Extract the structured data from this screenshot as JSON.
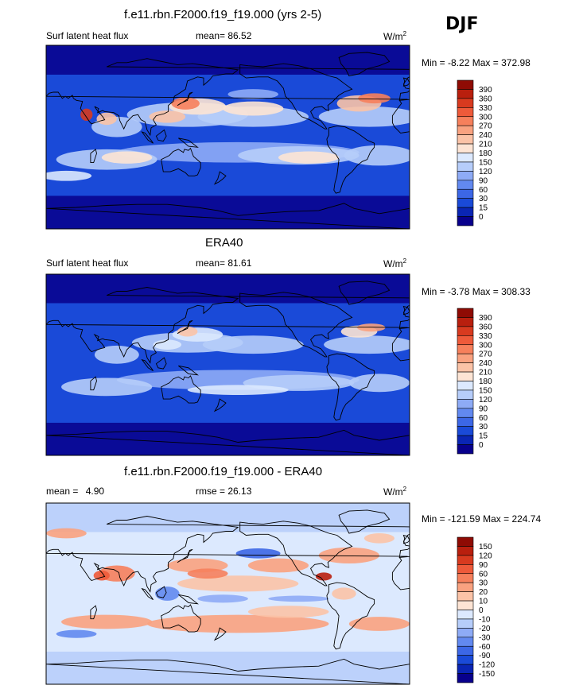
{
  "season": "DJF",
  "colors": {
    "seq_palette": [
      "#08008c",
      "#0a25b4",
      "#1a4ad8",
      "#3c67e6",
      "#6289f0",
      "#8eabf6",
      "#b6cdfa",
      "#dce9fe",
      "#fde4d4",
      "#fbc3a7",
      "#f9a280",
      "#f6805c",
      "#ee5a3a",
      "#d83a1f",
      "#b91f0e",
      "#8f0b04"
    ],
    "diff_palette": [
      "#08008c",
      "#0a25b4",
      "#1a4ad8",
      "#3c67e6",
      "#6289f0",
      "#8eabf6",
      "#b6cdfa",
      "#dce9fe",
      "#fde4d4",
      "#fbc3a7",
      "#f9a280",
      "#f6805c",
      "#ee5a3a",
      "#d83a1f",
      "#b91f0e",
      "#8f0b04"
    ],
    "land_outline": "#000000"
  },
  "panels": [
    {
      "title": "f.e11.rbn.F2000.f19_f19.000 (yrs 2-5)",
      "left_label": "Surf latent heat flux",
      "stat_label": "mean=",
      "stat_value": "86.52",
      "units": "W/m",
      "units_sup": "2",
      "min_label": "Min =",
      "min_value": "-8.22",
      "max_label": "Max =",
      "max_value": "372.98",
      "colorbar_levels": [
        "390",
        "360",
        "330",
        "300",
        "270",
        "240",
        "210",
        "180",
        "150",
        "120",
        "90",
        "60",
        "30",
        "15",
        "0"
      ]
    },
    {
      "title": "ERA40",
      "left_label": "Surf latent heat flux",
      "stat_label": "mean=",
      "stat_value": "81.61",
      "units": "W/m",
      "units_sup": "2",
      "min_label": "Min =",
      "min_value": "-3.78",
      "max_label": "Max =",
      "max_value": "308.33",
      "colorbar_levels": [
        "390",
        "360",
        "330",
        "300",
        "270",
        "240",
        "210",
        "180",
        "150",
        "120",
        "90",
        "60",
        "30",
        "15",
        "0"
      ]
    },
    {
      "title": "f.e11.rbn.F2000.f19_f19.000 - ERA40",
      "left_label": "mean =",
      "left_value": "4.90",
      "stat_label": "rmse =",
      "stat_value": "26.13",
      "units": "W/m",
      "units_sup": "2",
      "min_label": "Min =",
      "min_value": "-121.59",
      "max_label": "Max =",
      "max_value": "224.74",
      "colorbar_levels": [
        "150",
        "120",
        "90",
        "60",
        "30",
        "20",
        "10",
        "0",
        "-10",
        "-20",
        "-30",
        "-60",
        "-90",
        "-120",
        "-150"
      ]
    }
  ],
  "chart_data": [
    {
      "type": "heatmap",
      "title": "f.e11.rbn.F2000.f19_f19.000 (yrs 2-5)",
      "variable": "Surf latent heat flux",
      "units": "W/m2",
      "mean": 86.52,
      "min": -8.22,
      "max": 372.98,
      "levels": [
        0,
        15,
        30,
        60,
        90,
        120,
        150,
        180,
        210,
        240,
        270,
        300,
        330,
        360,
        390
      ],
      "xlim": [
        0,
        360
      ],
      "ylim": [
        -90,
        90
      ]
    },
    {
      "type": "heatmap",
      "title": "ERA40",
      "variable": "Surf latent heat flux",
      "units": "W/m2",
      "mean": 81.61,
      "min": -3.78,
      "max": 308.33,
      "levels": [
        0,
        15,
        30,
        60,
        90,
        120,
        150,
        180,
        210,
        240,
        270,
        300,
        330,
        360,
        390
      ],
      "xlim": [
        0,
        360
      ],
      "ylim": [
        -90,
        90
      ]
    },
    {
      "type": "heatmap",
      "title": "f.e11.rbn.F2000.f19_f19.000 - ERA40",
      "units": "W/m2",
      "mean": 4.9,
      "rmse": 26.13,
      "min": -121.59,
      "max": 224.74,
      "levels": [
        -150,
        -120,
        -90,
        -60,
        -30,
        -20,
        -10,
        0,
        10,
        20,
        30,
        60,
        90,
        120,
        150
      ],
      "xlim": [
        0,
        360
      ],
      "ylim": [
        -90,
        90
      ]
    }
  ]
}
